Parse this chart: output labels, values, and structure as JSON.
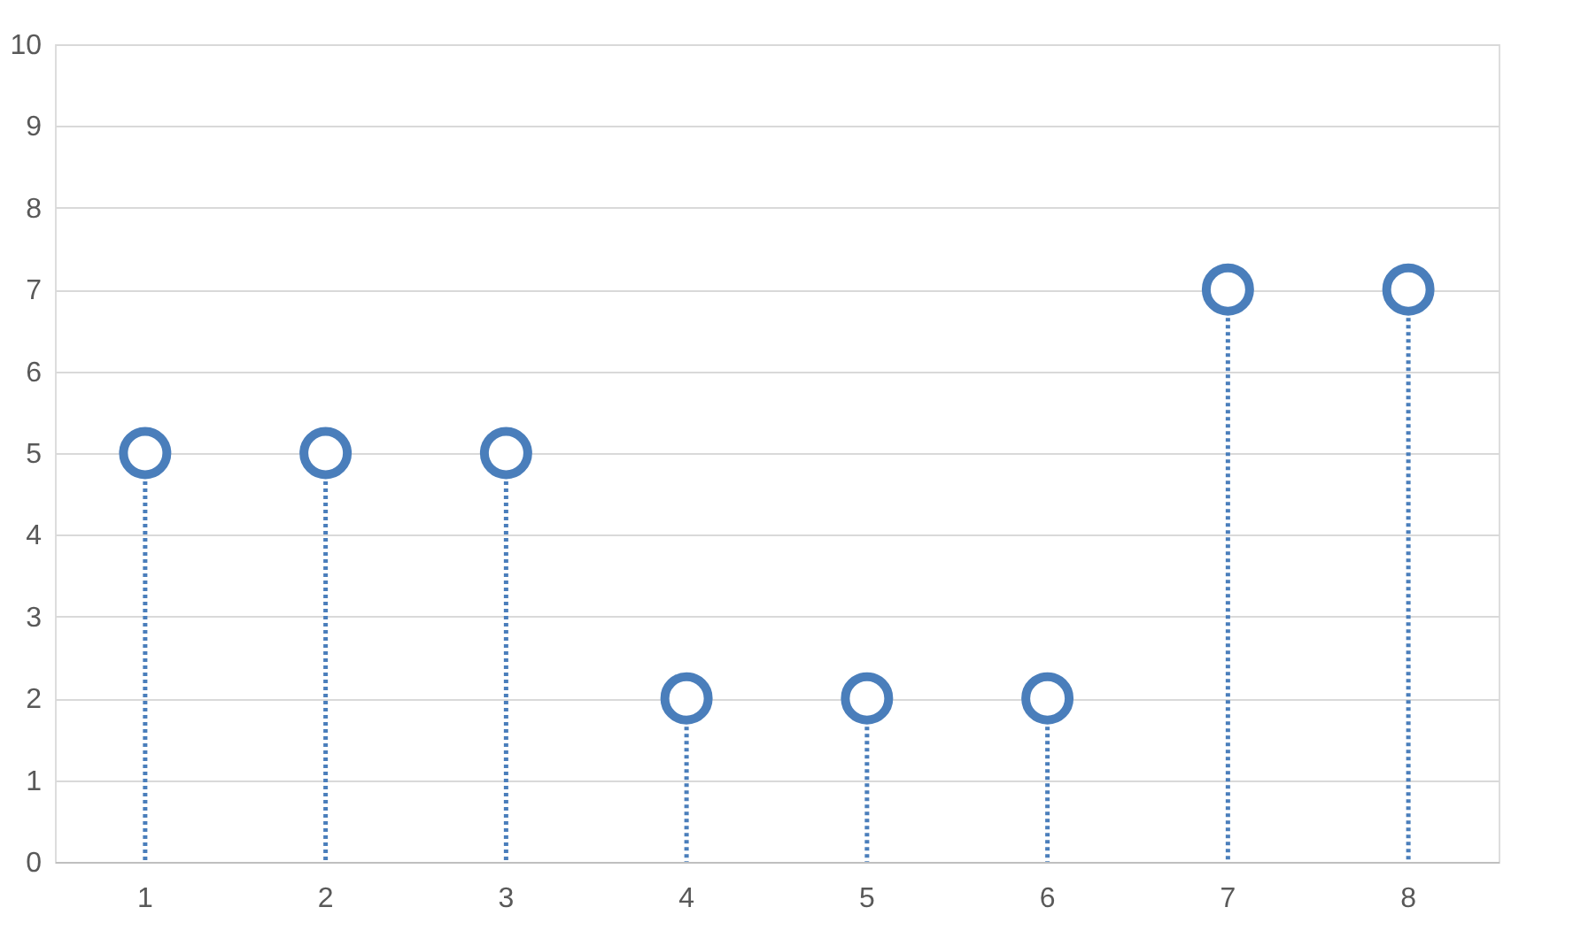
{
  "chart_data": {
    "type": "lollipop",
    "categories": [
      "1",
      "2",
      "3",
      "4",
      "5",
      "6",
      "7",
      "8"
    ],
    "series": [
      {
        "color": "#4a7ebb",
        "values": [
          5,
          5,
          5,
          2,
          2,
          2,
          7,
          7
        ]
      }
    ],
    "ylim": [
      0,
      10
    ],
    "yticks": [
      0,
      1,
      2,
      3,
      4,
      5,
      6,
      7,
      8,
      9,
      10
    ],
    "grid": "y",
    "marker": "circle",
    "line_style": "dotted"
  }
}
